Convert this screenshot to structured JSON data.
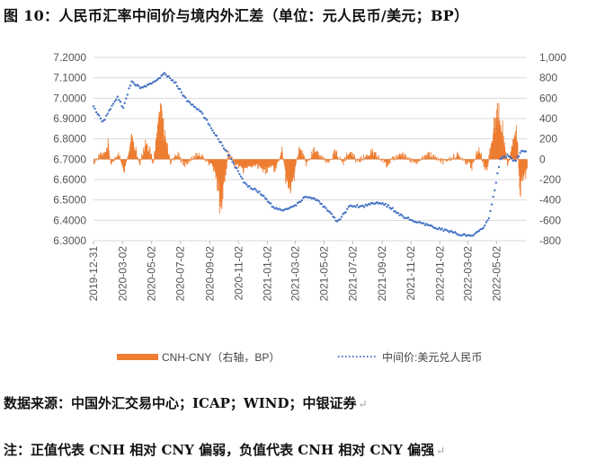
{
  "header": {
    "title": "图 10：人民币汇率中间价与境内外汇差（单位：元人民币/美元；BP）"
  },
  "footer": {
    "source": "数据来源：中国外汇交易中心；ICAP；WIND；中银证券",
    "note": "注：正值代表 CNH 相对 CNY 偏弱，负值代表 CNH 相对 CNY 偏强",
    "para_mark": "↵"
  },
  "chart_data": {
    "type": "bar+scatter",
    "title": "",
    "x_ticks": [
      "2019-12-31",
      "2020-03-02",
      "2020-05-02",
      "2020-07-02",
      "2020-09-02",
      "2020-11-02",
      "2021-01-02",
      "2021-03-02",
      "2021-05-02",
      "2021-07-02",
      "2021-09-02",
      "2021-11-02",
      "2022-01-02",
      "2022-03-02",
      "2022-05-02"
    ],
    "x_range": [
      "2019-12-31",
      "2022-07-05"
    ],
    "y_left": {
      "ticks": [
        "6.3000",
        "6.4000",
        "6.5000",
        "6.6000",
        "6.7000",
        "6.8000",
        "6.9000",
        "7.0000",
        "7.1000",
        "7.2000"
      ],
      "range": [
        6.3,
        7.2
      ]
    },
    "y_right": {
      "ticks": [
        "-800",
        "-600",
        "-400",
        "-200",
        "0",
        "200",
        "400",
        "600",
        "800",
        "1,000"
      ],
      "range": [
        -800,
        1000
      ]
    },
    "grid": true,
    "legend_position": "bottom",
    "series": [
      {
        "name": "CNH-CNY（右轴，BP）",
        "kind": "bar",
        "axis": "right",
        "color": "#ED7D31",
        "anchors": [
          [
            "2019-12-31",
            -20
          ],
          [
            "2020-01-20",
            60
          ],
          [
            "2020-01-31",
            180
          ],
          [
            "2020-02-05",
            -80
          ],
          [
            "2020-02-20",
            70
          ],
          [
            "2020-03-05",
            -110
          ],
          [
            "2020-03-15",
            120
          ],
          [
            "2020-03-20",
            300
          ],
          [
            "2020-04-05",
            -60
          ],
          [
            "2020-04-20",
            200
          ],
          [
            "2020-05-05",
            -40
          ],
          [
            "2020-05-20",
            650
          ],
          [
            "2020-05-28",
            300
          ],
          [
            "2020-06-10",
            -30
          ],
          [
            "2020-06-25",
            50
          ],
          [
            "2020-07-10",
            -60
          ],
          [
            "2020-08-10",
            60
          ],
          [
            "2020-09-10",
            -100
          ],
          [
            "2020-09-20",
            -350
          ],
          [
            "2020-09-25",
            -700
          ],
          [
            "2020-10-10",
            80
          ],
          [
            "2020-10-25",
            -60
          ],
          [
            "2020-11-10",
            -120
          ],
          [
            "2020-12-10",
            -80
          ],
          [
            "2020-12-25",
            -140
          ],
          [
            "2021-01-10",
            -90
          ],
          [
            "2021-01-20",
            -100
          ],
          [
            "2021-02-01",
            120
          ],
          [
            "2021-02-10",
            -250
          ],
          [
            "2021-02-20",
            -400
          ],
          [
            "2021-03-10",
            150
          ],
          [
            "2021-03-25",
            -60
          ],
          [
            "2021-04-10",
            100
          ],
          [
            "2021-05-10",
            -50
          ],
          [
            "2021-05-25",
            80
          ],
          [
            "2021-06-10",
            -40
          ],
          [
            "2021-06-25",
            100
          ],
          [
            "2021-07-10",
            -30
          ],
          [
            "2021-08-10",
            80
          ],
          [
            "2021-09-10",
            -50
          ],
          [
            "2021-10-10",
            60
          ],
          [
            "2021-11-10",
            -40
          ],
          [
            "2021-12-10",
            50
          ],
          [
            "2022-01-10",
            -30
          ],
          [
            "2022-02-10",
            50
          ],
          [
            "2022-03-10",
            -80
          ],
          [
            "2022-03-25",
            120
          ],
          [
            "2022-04-10",
            -150
          ],
          [
            "2022-04-20",
            200
          ],
          [
            "2022-04-27",
            420
          ],
          [
            "2022-05-05",
            680
          ],
          [
            "2022-05-15",
            300
          ],
          [
            "2022-05-25",
            -80
          ],
          [
            "2022-06-10",
            400
          ],
          [
            "2022-06-15",
            200
          ],
          [
            "2022-06-20",
            -450
          ],
          [
            "2022-06-25",
            -250
          ],
          [
            "2022-07-05",
            -120
          ]
        ]
      },
      {
        "name": "中间价:美元兑人民币",
        "kind": "dotted-line",
        "axis": "left",
        "color": "#4472C4",
        "anchors": [
          [
            "2019-12-31",
            6.96
          ],
          [
            "2020-01-10",
            6.92
          ],
          [
            "2020-01-20",
            6.88
          ],
          [
            "2020-01-31",
            6.93
          ],
          [
            "2020-02-20",
            7.01
          ],
          [
            "2020-03-02",
            6.95
          ],
          [
            "2020-03-20",
            7.08
          ],
          [
            "2020-04-10",
            7.05
          ],
          [
            "2020-05-02",
            7.07
          ],
          [
            "2020-05-28",
            7.12
          ],
          [
            "2020-06-20",
            7.08
          ],
          [
            "2020-07-15",
            6.99
          ],
          [
            "2020-08-15",
            6.93
          ],
          [
            "2020-09-15",
            6.82
          ],
          [
            "2020-10-15",
            6.71
          ],
          [
            "2020-11-15",
            6.58
          ],
          [
            "2020-12-15",
            6.54
          ],
          [
            "2021-01-02",
            6.5
          ],
          [
            "2021-01-15",
            6.46
          ],
          [
            "2021-02-05",
            6.45
          ],
          [
            "2021-03-02",
            6.47
          ],
          [
            "2021-03-25",
            6.52
          ],
          [
            "2021-04-15",
            6.5
          ],
          [
            "2021-05-15",
            6.44
          ],
          [
            "2021-05-30",
            6.39
          ],
          [
            "2021-06-25",
            6.47
          ],
          [
            "2021-07-25",
            6.47
          ],
          [
            "2021-08-20",
            6.49
          ],
          [
            "2021-09-15",
            6.47
          ],
          [
            "2021-10-15",
            6.42
          ],
          [
            "2021-11-15",
            6.39
          ],
          [
            "2021-12-15",
            6.37
          ],
          [
            "2022-01-15",
            6.35
          ],
          [
            "2022-02-15",
            6.33
          ],
          [
            "2022-03-10",
            6.32
          ],
          [
            "2022-04-01",
            6.36
          ],
          [
            "2022-04-15",
            6.4
          ],
          [
            "2022-04-28",
            6.55
          ],
          [
            "2022-05-10",
            6.7
          ],
          [
            "2022-05-25",
            6.72
          ],
          [
            "2022-06-10",
            6.69
          ],
          [
            "2022-06-25",
            6.74
          ],
          [
            "2022-07-05",
            6.74
          ]
        ]
      }
    ]
  }
}
